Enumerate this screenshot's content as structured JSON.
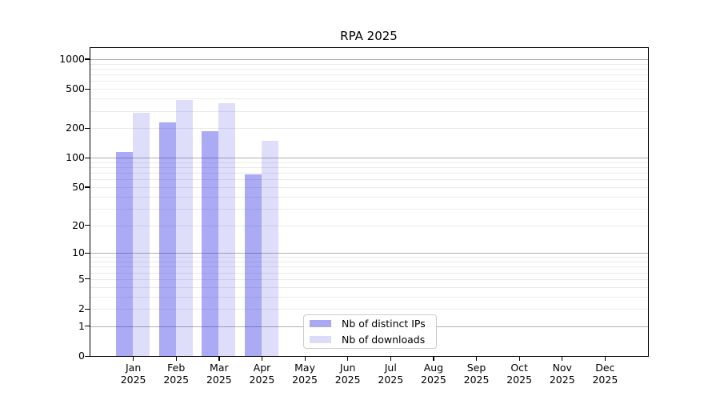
{
  "figure": {
    "background": "#ffffff"
  },
  "chart_data": {
    "type": "bar",
    "title": "RPA 2025",
    "y_scale": "symlog (position = ln(1+y))",
    "categories": [
      "Jan",
      "Feb",
      "Mar",
      "Apr",
      "May",
      "Jun",
      "Jul",
      "Aug",
      "Sep",
      "Oct",
      "Nov",
      "Dec"
    ],
    "year_label": "2025",
    "series": [
      {
        "name": "Nb of distinct IPs",
        "color": "rgba(32,32,230,0.38)",
        "legend_swatch": "#a9a9f2",
        "values": [
          114,
          229,
          187,
          68,
          null,
          null,
          null,
          null,
          null,
          null,
          null,
          null
        ]
      },
      {
        "name": "Nb of downloads",
        "color": "rgba(32,32,230,0.15)",
        "legend_swatch": "#dcdcf8",
        "values": [
          285,
          384,
          356,
          149,
          null,
          null,
          null,
          null,
          null,
          null,
          null,
          null
        ]
      }
    ],
    "y_ticks": [
      0,
      1,
      2,
      5,
      10,
      20,
      50,
      100,
      200,
      500,
      1000
    ],
    "ylim": [
      0,
      1300
    ],
    "xlabel": "",
    "ylabel": "",
    "grid": {
      "major_values": [
        1,
        10,
        100,
        1000
      ],
      "major_color": "#b0b0b0",
      "minor_color": "#eaeaea"
    },
    "legend_position": "inside-bottom-center"
  }
}
